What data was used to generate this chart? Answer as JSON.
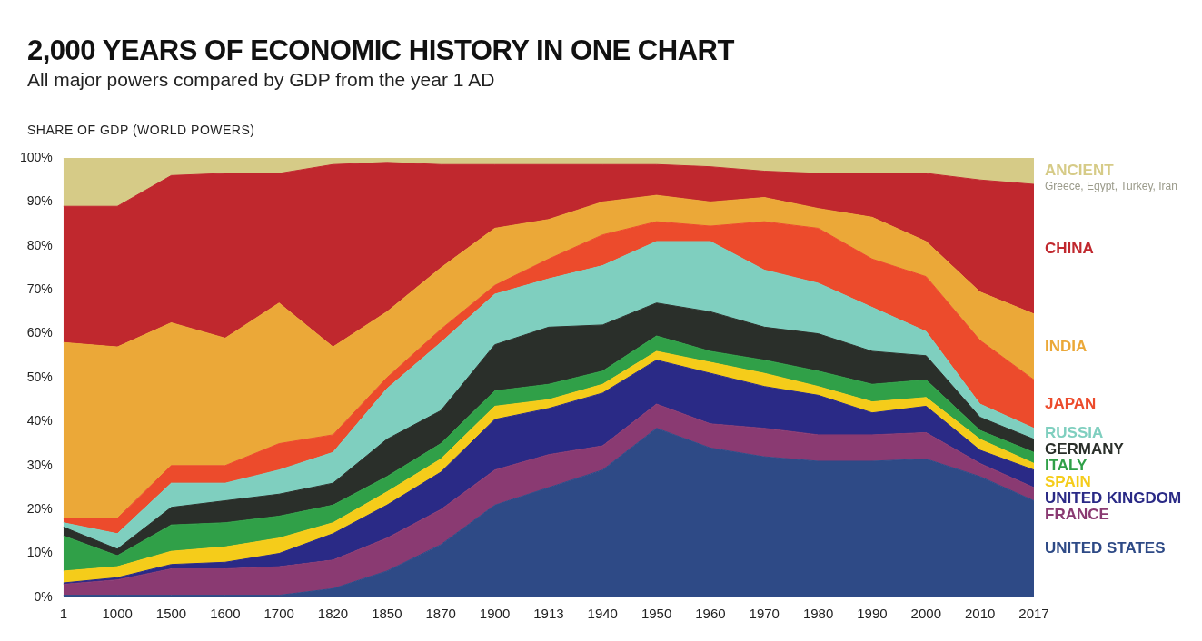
{
  "chart_data": {
    "type": "area",
    "title": "2,000 YEARS OF ECONOMIC HISTORY IN ONE CHART",
    "subtitle": "All major powers compared by GDP from the year 1 AD",
    "ylabel": "SHARE OF GDP (WORLD POWERS)",
    "stacked": true,
    "categories": [
      "1",
      "1000",
      "1500",
      "1600",
      "1700",
      "1820",
      "1850",
      "1870",
      "1900",
      "1913",
      "1940",
      "1950",
      "1960",
      "1970",
      "1980",
      "1990",
      "2000",
      "2010",
      "2017"
    ],
    "ylim": [
      0,
      100
    ],
    "yticks": [
      {
        "value": 0,
        "label": "0%"
      },
      {
        "value": 10,
        "label": "10%"
      },
      {
        "value": 20,
        "label": "20%"
      },
      {
        "value": 30,
        "label": "30%"
      },
      {
        "value": 40,
        "label": "40%"
      },
      {
        "value": 50,
        "label": "50%"
      },
      {
        "value": 60,
        "label": "60%"
      },
      {
        "value": 70,
        "label": "70%"
      },
      {
        "value": 80,
        "label": "80%"
      },
      {
        "value": 90,
        "label": "90%"
      },
      {
        "value": 100,
        "label": "100%"
      }
    ],
    "series": [
      {
        "name": "UNITED STATES",
        "color": "#2e4a86",
        "values": [
          0.5,
          0.5,
          0.5,
          0.5,
          0.5,
          2,
          6,
          12,
          21,
          25,
          29,
          38.5,
          34,
          32,
          31,
          31,
          31.5,
          27.5,
          22
        ]
      },
      {
        "name": "FRANCE",
        "color": "#8a3a72",
        "values": [
          2.5,
          3.5,
          6,
          6,
          6.5,
          6.5,
          7.5,
          8,
          8,
          7.5,
          5.5,
          5.5,
          5.5,
          6.5,
          6,
          6,
          6,
          3,
          3
        ]
      },
      {
        "name": "UNITED KINGDOM",
        "color": "#2a2a86",
        "values": [
          0.3,
          0.5,
          1,
          1.5,
          3,
          6,
          7.5,
          8.5,
          11.5,
          10.5,
          12,
          10,
          11.5,
          9.5,
          9,
          5,
          6,
          3,
          4
        ]
      },
      {
        "name": "SPAIN",
        "color": "#f5cc1a",
        "values": [
          2.7,
          2.5,
          3,
          3.5,
          3.5,
          2.5,
          3,
          3,
          3,
          2,
          2,
          2,
          2.5,
          3,
          2,
          2.5,
          2,
          2.5,
          1.5
        ]
      },
      {
        "name": "ITALY",
        "color": "#30a048",
        "values": [
          8,
          2.5,
          6,
          5.5,
          5,
          4,
          3.5,
          3.5,
          3.5,
          3.5,
          3,
          3.5,
          2.5,
          3,
          3.5,
          4,
          4,
          2,
          2.5
        ]
      },
      {
        "name": "GERMANY",
        "color": "#2a2f2a",
        "values": [
          2,
          1.5,
          4,
          5,
          5,
          5,
          8.5,
          7.5,
          10.5,
          13,
          10.5,
          7.5,
          9,
          7.5,
          8.5,
          7.5,
          5.5,
          3,
          3
        ]
      },
      {
        "name": "RUSSIA",
        "color": "#7fcfbf",
        "values": [
          1,
          3.5,
          5.5,
          4,
          5.5,
          7,
          11.5,
          15.5,
          11.5,
          11,
          13.5,
          14,
          16,
          13,
          11.5,
          10,
          5.5,
          3,
          2.5
        ]
      },
      {
        "name": "JAPAN",
        "color": "#ec4b2c",
        "values": [
          1,
          3.5,
          4,
          4,
          6,
          4,
          2.5,
          3,
          2,
          4.5,
          7,
          4.5,
          3.5,
          11,
          12.5,
          11,
          12.5,
          14.5,
          11
        ]
      },
      {
        "name": "INDIA",
        "color": "#eba838",
        "values": [
          40,
          39,
          32.5,
          29,
          32,
          20,
          15,
          14,
          13,
          9,
          7.5,
          6,
          5.5,
          5.5,
          4.5,
          9.5,
          8,
          11,
          15
        ]
      },
      {
        "name": "CHINA",
        "color": "#c0282e",
        "values": [
          31,
          32,
          33.5,
          37.5,
          29.5,
          41.5,
          34,
          23.5,
          14.5,
          12.5,
          8.5,
          7,
          8,
          6,
          8,
          10,
          15.5,
          25.5,
          29.5
        ]
      },
      {
        "name": "ANCIENT",
        "color": "#d6cb87",
        "values": [
          11,
          11,
          4,
          3.5,
          3.5,
          1.5,
          1,
          1.5,
          1.5,
          1.5,
          1.5,
          1.5,
          2,
          3,
          3.5,
          3.5,
          3.5,
          5,
          6
        ]
      }
    ],
    "annotations": [
      "Greece, Egypt, Turkey, Iran"
    ]
  }
}
